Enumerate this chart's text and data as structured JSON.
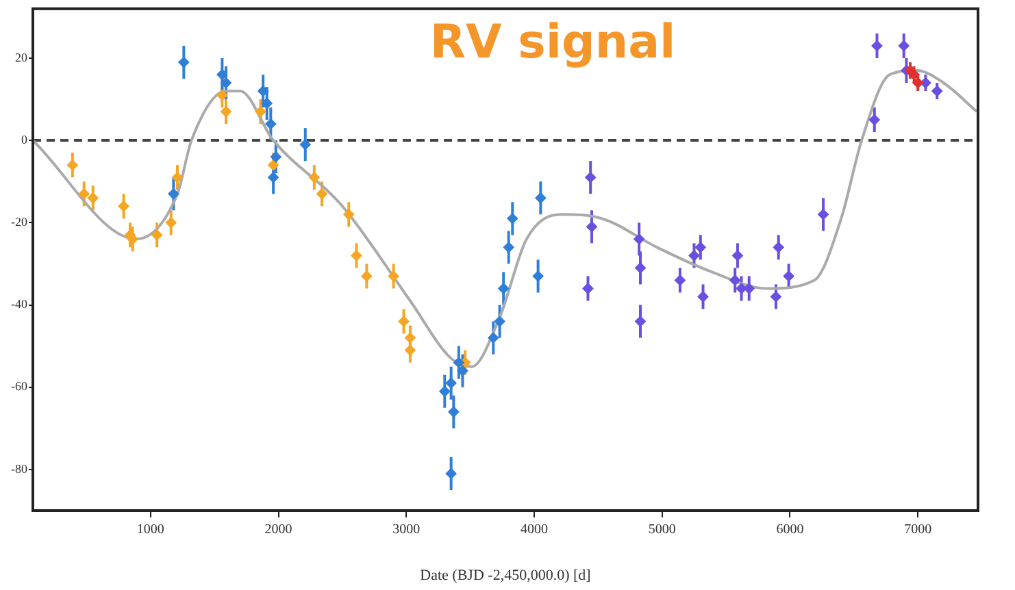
{
  "chart_data": {
    "type": "scatter",
    "title": "RV signal",
    "xlabel": "Date (BJD -2,450,000.0) [d]",
    "xlim": [
      80,
      7470
    ],
    "ylim": [
      -90,
      32
    ],
    "xticks": [
      1000,
      2000,
      3000,
      4000,
      5000,
      6000,
      7000
    ],
    "yticks": [
      -80,
      -60,
      -40,
      -20,
      0,
      20
    ],
    "grid": false,
    "legend": false,
    "marker": "diamond",
    "ref_lines": [
      {
        "axis": "y",
        "value": 0,
        "color": "#444444",
        "line_style": "dashed"
      }
    ],
    "series": [
      {
        "color": "#f5a623",
        "x": [
          390,
          480,
          550,
          790,
          840,
          860,
          1050,
          1160,
          1210,
          1560,
          1590,
          1860,
          1960,
          2280,
          2340,
          2550,
          2610,
          2690,
          2900,
          2980,
          3030,
          3030,
          3460
        ],
        "values": [
          -6,
          -13,
          -14,
          -16,
          -23,
          -24,
          -23,
          -20,
          -9,
          11,
          7,
          7,
          -6,
          -9,
          -13,
          -18,
          -28,
          -33,
          -33,
          -44,
          -48,
          -51,
          -54
        ],
        "errors": [
          3,
          3,
          3,
          3,
          3,
          3,
          3,
          3,
          3,
          3,
          3,
          3,
          3,
          3,
          3,
          3,
          3,
          3,
          3,
          3,
          3,
          3,
          3
        ]
      },
      {
        "color": "#2f7fd8",
        "x": [
          1260,
          1180,
          1560,
          1590,
          1880,
          1910,
          1940,
          1960,
          1980,
          2210,
          3300,
          3350,
          3370,
          3350,
          3410,
          3440,
          3680,
          3730,
          3760,
          3800,
          3830,
          4050,
          4030
        ],
        "values": [
          19,
          -13,
          16,
          14,
          12,
          9,
          4,
          -9,
          -4,
          -1,
          -61,
          -59,
          -66,
          -81,
          -54,
          -56,
          -48,
          -44,
          -36,
          -26,
          -19,
          -14,
          -33
        ],
        "errors": [
          4,
          4,
          4,
          4,
          4,
          4,
          4,
          4,
          4,
          4,
          4,
          4,
          4,
          4,
          4,
          4,
          4,
          4,
          4,
          4,
          4,
          4,
          4
        ]
      },
      {
        "color": "#6a4fe0",
        "x": [
          4440,
          4450,
          4420,
          4820,
          4830,
          4830,
          5140,
          5250,
          5300,
          5320,
          5570,
          5590,
          5620,
          5680,
          5890,
          5910,
          5990,
          6260,
          6660,
          6680,
          6890,
          6910,
          7060,
          7150
        ],
        "values": [
          -9,
          -21,
          -36,
          -24,
          -31,
          -44,
          -34,
          -28,
          -26,
          -38,
          -34,
          -28,
          -36,
          -36,
          -38,
          -26,
          -33,
          -18,
          5,
          23,
          23,
          17,
          14,
          12
        ],
        "errors": [
          4,
          4,
          3,
          4,
          4,
          4,
          3,
          3,
          3,
          3,
          3,
          3,
          3,
          3,
          3,
          3,
          3,
          4,
          3,
          3,
          3,
          3,
          2,
          2
        ]
      },
      {
        "color": "#e03030",
        "x": [
          6940,
          6970,
          7000
        ],
        "values": [
          17,
          16,
          14
        ],
        "errors": [
          2,
          2,
          2
        ]
      },
      {
        "type": "line",
        "color": "#aaaaaa",
        "marker": "none",
        "x": [
          80,
          890,
          1210,
          1320,
          1590,
          1700,
          1960,
          2500,
          3030,
          3350,
          3510,
          3730,
          3940,
          4210,
          4530,
          4960,
          5390,
          5820,
          6190,
          6400,
          6560,
          6780,
          6990,
          7200,
          7460
        ],
        "values": [
          0,
          -24,
          -13,
          0,
          12,
          12,
          0,
          -16,
          -39,
          -53,
          -55,
          -43,
          -24,
          -18,
          -19,
          -26,
          -32,
          -36,
          -34,
          -19,
          0,
          16,
          17,
          14,
          7
        ]
      }
    ]
  }
}
